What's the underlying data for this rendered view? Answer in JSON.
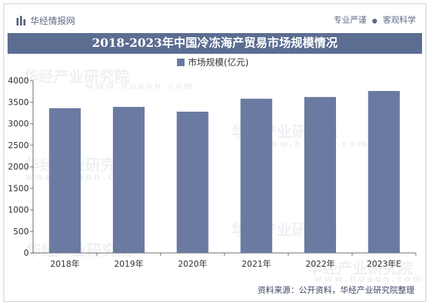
{
  "header": {
    "brand_name": "华经情报网",
    "tagline_left": "专业严谨",
    "tagline_sep": "●",
    "tagline_right": "客观科学"
  },
  "chart_data": {
    "type": "bar",
    "title": "2018-2023年中国冷冻海产贸易市场规模情况",
    "categories": [
      "2018年",
      "2019年",
      "2020年",
      "2021年",
      "2022年",
      "2023年E"
    ],
    "series": [
      {
        "name": "市场规模(亿元)",
        "values": [
          3360,
          3390,
          3280,
          3580,
          3620,
          3760
        ]
      }
    ],
    "xlabel": "",
    "ylabel": "",
    "ylim": [
      0,
      4000
    ],
    "yticks": [
      0,
      500,
      1000,
      1500,
      2000,
      2500,
      3000,
      3500,
      4000
    ],
    "legend_position": "top",
    "grid": false
  },
  "watermark": {
    "text": "华经产业研究院",
    "url": "www.huaon.com"
  },
  "footer": {
    "source": "资料来源：公开资料，华经产业研究院整理"
  },
  "colors": {
    "bar": "#6a7aa0",
    "title_bg": "#5c6d92",
    "axis": "#666666",
    "text": "#333333"
  }
}
